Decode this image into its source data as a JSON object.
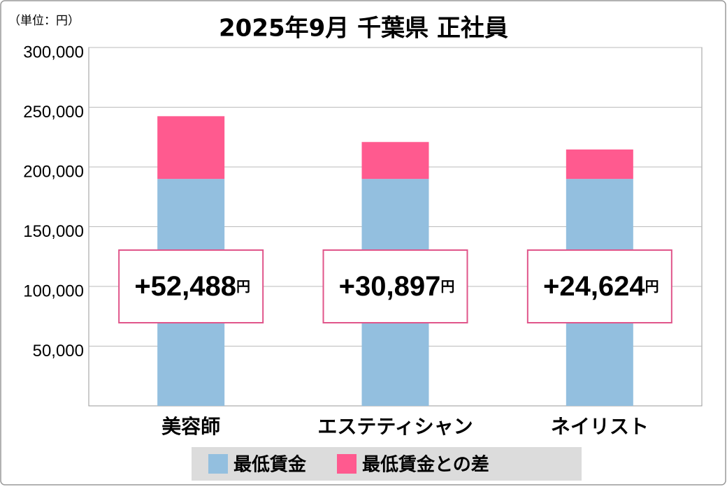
{
  "chart_data": {
    "type": "stacked_bar",
    "title": "2025年9月 千葉県 正社員",
    "unit_note": "（単位：円）",
    "categories": [
      "美容師",
      "エステティシャン",
      "ネイリスト"
    ],
    "series": [
      {
        "name": "最低賃金",
        "color": "#93bfdf",
        "values": [
          190000,
          190000,
          190000
        ]
      },
      {
        "name": "最低賃金との差",
        "color": "#ff5a8f",
        "values": [
          52488,
          30897,
          24624
        ],
        "value_labels": [
          "+52,488",
          "+30,897",
          "+24,624"
        ],
        "label_unit": "円"
      }
    ],
    "ylim": [
      0,
      300000
    ],
    "yticks": [
      {
        "value": 50000,
        "label": "50,000"
      },
      {
        "value": 100000,
        "label": "100,000"
      },
      {
        "value": 150000,
        "label": "150,000"
      },
      {
        "value": 200000,
        "label": "200,000"
      },
      {
        "value": 250000,
        "label": "250,000"
      },
      {
        "value": 300000,
        "label": "300,000"
      }
    ],
    "grid": true
  }
}
